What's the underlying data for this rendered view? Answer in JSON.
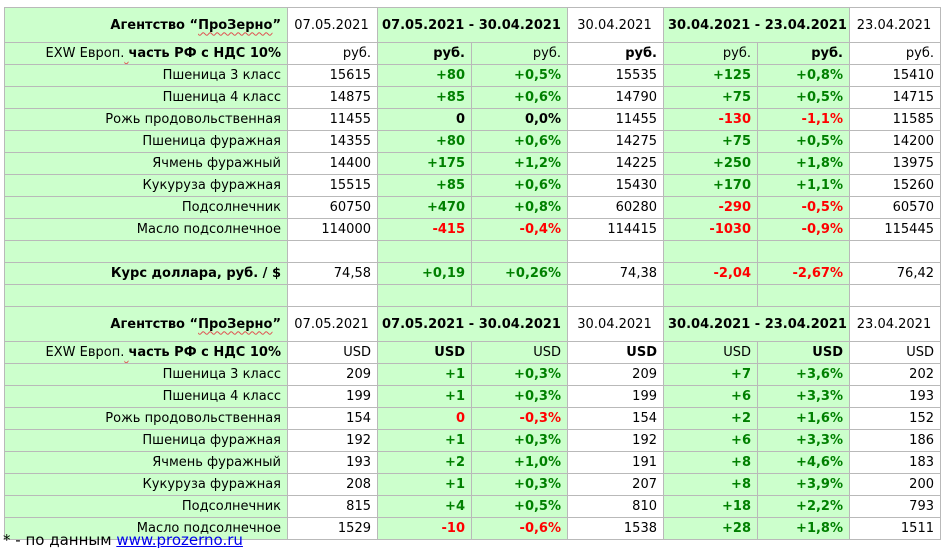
{
  "table": {
    "sections": [
      {
        "header": {
          "agency_prefix": "Агентство “",
          "agency_name": "ПроЗерно",
          "agency_suffix": "”",
          "cols": [
            "07.05.2021",
            "07.05.2021 - 30.04.2021",
            "30.04.2021",
            "30.04.2021 - 23.04.2021",
            "23.04.2021"
          ]
        },
        "units_row": {
          "label_prefix": "EXW Европ.",
          "label_suffix": "часть РФ с НДС 10%",
          "units": [
            "руб.",
            "руб.",
            "руб.",
            "руб.",
            "руб.",
            "руб.",
            "руб."
          ]
        },
        "rows": [
          {
            "name": "Пшеница 3 класс",
            "v1": "15615",
            "d1": "+80",
            "p1": "+0,5%",
            "v2": "15535",
            "d2": "+125",
            "p2": "+0,8%",
            "v3": "15410"
          },
          {
            "name": "Пшеница 4 класс",
            "v1": "14875",
            "d1": "+85",
            "p1": "+0,6%",
            "v2": "14790",
            "d2": "+75",
            "p2": "+0,5%",
            "v3": "14715"
          },
          {
            "name": "Рожь продовольственная",
            "v1": "11455",
            "d1": "0",
            "p1": "0,0%",
            "v2": "11455",
            "d2": "-130",
            "p2": "-1,1%",
            "v3": "11585"
          },
          {
            "name": "Пшеница фуражная",
            "v1": "14355",
            "d1": "+80",
            "p1": "+0,6%",
            "v2": "14275",
            "d2": "+75",
            "p2": "+0,5%",
            "v3": "14200"
          },
          {
            "name": "Ячмень фуражный",
            "v1": "14400",
            "d1": "+175",
            "p1": "+1,2%",
            "v2": "14225",
            "d2": "+250",
            "p2": "+1,8%",
            "v3": "13975"
          },
          {
            "name": "Кукуруза фуражная",
            "v1": "15515",
            "d1": "+85",
            "p1": "+0,6%",
            "v2": "15430",
            "d2": "+170",
            "p2": "+1,1%",
            "v3": "15260"
          },
          {
            "name": "Подсолнечник",
            "v1": "60750",
            "d1": "+470",
            "p1": "+0,8%",
            "v2": "60280",
            "d2": "-290",
            "p2": "-0,5%",
            "v3": "60570"
          },
          {
            "name": "Масло подсолнечное",
            "v1": "114000",
            "d1": "-415",
            "p1": "-0,4%",
            "v2": "114415",
            "d2": "-1030",
            "p2": "-0,9%",
            "v3": "115445"
          }
        ]
      },
      {
        "header": {
          "agency_prefix": "Агентство “",
          "agency_name": "ПроЗерно",
          "agency_suffix": "”",
          "cols": [
            "07.05.2021",
            "07.05.2021 - 30.04.2021",
            "30.04.2021",
            "30.04.2021 - 23.04.2021",
            "23.04.2021"
          ]
        },
        "units_row": {
          "label_prefix": "EXW Европ.",
          "label_suffix": "часть РФ с НДС 10%",
          "units": [
            "USD",
            "USD",
            "USD",
            "USD",
            "USD",
            "USD",
            "USD"
          ]
        },
        "rows": [
          {
            "name": "Пшеница 3 класс",
            "v1": "209",
            "d1": "+1",
            "p1": "+0,3%",
            "v2": "209",
            "d2": "+7",
            "p2": "+3,6%",
            "v3": "202"
          },
          {
            "name": "Пшеница 4 класс",
            "v1": "199",
            "d1": "+1",
            "p1": "+0,3%",
            "v2": "199",
            "d2": "+6",
            "p2": "+3,3%",
            "v3": "193"
          },
          {
            "name": "Рожь продовольственная",
            "v1": "154",
            "d1": "0",
            "p1": "-0,3%",
            "v2": "154",
            "d2": "+2",
            "p2": "+1,6%",
            "v3": "152"
          },
          {
            "name": "Пшеница фуражная",
            "v1": "192",
            "d1": "+1",
            "p1": "+0,3%",
            "v2": "192",
            "d2": "+6",
            "p2": "+3,3%",
            "v3": "186"
          },
          {
            "name": "Ячмень фуражный",
            "v1": "193",
            "d1": "+2",
            "p1": "+1,0%",
            "v2": "191",
            "d2": "+8",
            "p2": "+4,6%",
            "v3": "183"
          },
          {
            "name": "Кукуруза фуражная",
            "v1": "208",
            "d1": "+1",
            "p1": "+0,3%",
            "v2": "207",
            "d2": "+8",
            "p2": "+3,9%",
            "v3": "200"
          },
          {
            "name": "Подсолнечник",
            "v1": "815",
            "d1": "+4",
            "p1": "+0,5%",
            "v2": "810",
            "d2": "+18",
            "p2": "+2,2%",
            "v3": "793"
          },
          {
            "name": "Масло подсолнечное",
            "v1": "1529",
            "d1": "-10",
            "p1": "-0,6%",
            "v2": "1538",
            "d2": "+28",
            "p2": "+1,8%",
            "v3": "1511"
          }
        ]
      }
    ],
    "dollar_row": {
      "label": "Курс доллара, руб. / $",
      "v1": "74,58",
      "d1": "+0,19",
      "p1": "+0,26%",
      "v2": "74,38",
      "d2": "-2,04",
      "p2": "-2,67%",
      "v3": "76,42"
    }
  },
  "footnote": {
    "text": "* - по данным ",
    "link": "www.prozerno.ru"
  },
  "colors": {
    "header_green": "#ccffcc",
    "positive": "#008000",
    "negative": "#ff0000",
    "grid": "#b9b9b9",
    "link": "#0000ee"
  }
}
